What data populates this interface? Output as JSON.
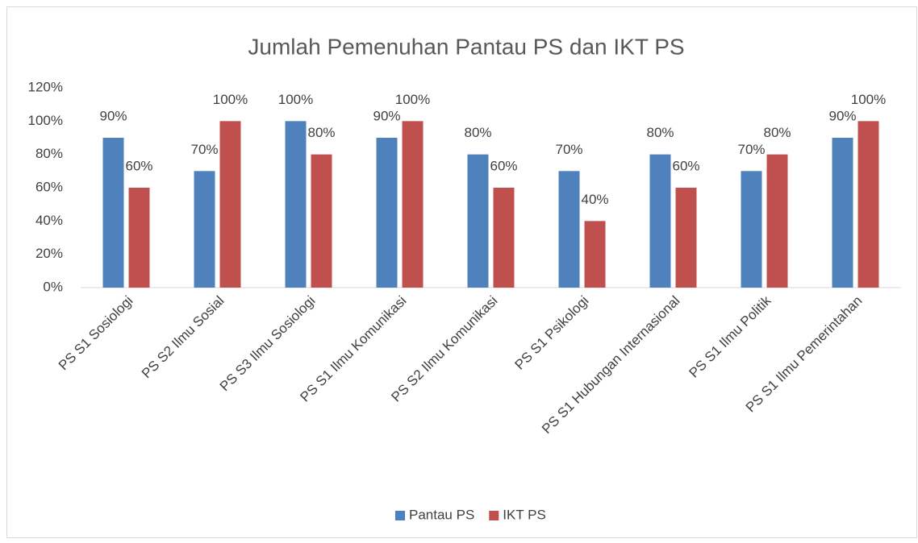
{
  "chart_data": {
    "type": "bar",
    "title": "Jumlah Pemenuhan Pantau PS dan IKT PS",
    "categories": [
      "PS S1 Sosiologi",
      "PS S2 Ilmu Sosial",
      "PS S3 Ilmu Sosiologi",
      "PS S1 Ilmu Komunikasi",
      "PS S2 Ilmu Komunikasi",
      "PS S1 Psikologi",
      "PS S1 Hubungan Internasional",
      "PS S1 Ilmu Politik",
      "PS S1 Ilmu Pemerintahan"
    ],
    "series": [
      {
        "name": "Pantau PS",
        "color": "#4f81bd",
        "values": [
          90,
          70,
          100,
          90,
          80,
          70,
          80,
          70,
          90
        ],
        "value_labels": [
          "90%",
          "70%",
          "100%",
          "90%",
          "80%",
          "70%",
          "80%",
          "70%",
          "90%"
        ]
      },
      {
        "name": "IKT PS",
        "color": "#c0504d",
        "values": [
          60,
          100,
          80,
          100,
          60,
          40,
          60,
          80,
          100
        ],
        "value_labels": [
          "60%",
          "100%",
          "80%",
          "100%",
          "60%",
          "40%",
          "60%",
          "80%",
          "100%"
        ]
      }
    ],
    "ylim": [
      0,
      120
    ],
    "yticks": [
      {
        "value": 0,
        "label": "0%"
      },
      {
        "value": 20,
        "label": "20%"
      },
      {
        "value": 40,
        "label": "40%"
      },
      {
        "value": 60,
        "label": "60%"
      },
      {
        "value": 80,
        "label": "80%"
      },
      {
        "value": 100,
        "label": "100%"
      },
      {
        "value": 120,
        "label": "120%"
      }
    ],
    "grid": false,
    "legend": "bottom"
  }
}
